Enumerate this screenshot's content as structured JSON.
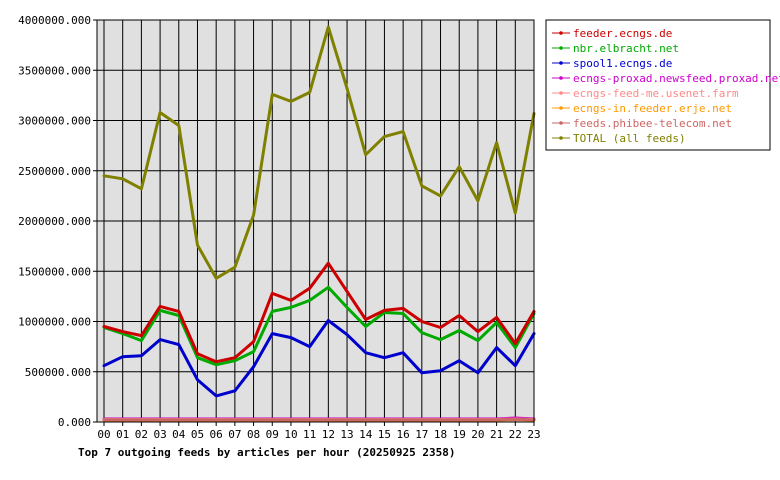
{
  "chart_data": {
    "type": "line",
    "title": "Top 7 outgoing feeds by articles per hour (20250925 2358)",
    "xlabel": "",
    "ylabel": "",
    "categories": [
      "00",
      "01",
      "02",
      "03",
      "04",
      "05",
      "06",
      "07",
      "08",
      "09",
      "10",
      "11",
      "12",
      "13",
      "14",
      "15",
      "16",
      "17",
      "18",
      "19",
      "20",
      "21",
      "22",
      "23"
    ],
    "ylim": [
      0,
      4000000
    ],
    "y_ticks": [
      "0.000",
      "500000.000",
      "1000000.000",
      "1500000.000",
      "2000000.000",
      "2500000.000",
      "3000000.000",
      "3500000.000",
      "4000000.000"
    ],
    "grid": true,
    "legend_position": "right",
    "series": [
      {
        "name": "feeder.ecngs.de",
        "color": "#cc0000",
        "values": [
          950000,
          900000,
          860000,
          1150000,
          1100000,
          680000,
          600000,
          640000,
          800000,
          1280000,
          1210000,
          1330000,
          1580000,
          1300000,
          1020000,
          1110000,
          1130000,
          1000000,
          940000,
          1060000,
          900000,
          1040000,
          780000,
          1100000
        ]
      },
      {
        "name": "nbr.elbracht.net",
        "color": "#00aa00",
        "values": [
          940000,
          880000,
          810000,
          1110000,
          1060000,
          640000,
          570000,
          610000,
          700000,
          1100000,
          1140000,
          1210000,
          1340000,
          1140000,
          950000,
          1090000,
          1080000,
          890000,
          820000,
          910000,
          810000,
          990000,
          740000,
          1080000
        ]
      },
      {
        "name": "spool1.ecngs.de",
        "color": "#0000cc",
        "values": [
          560000,
          650000,
          660000,
          820000,
          770000,
          420000,
          260000,
          310000,
          550000,
          880000,
          840000,
          750000,
          1010000,
          870000,
          690000,
          640000,
          690000,
          490000,
          510000,
          610000,
          490000,
          740000,
          560000,
          880000
        ]
      },
      {
        "name": "ecngs-proxad.newsfeed.proxad.net",
        "color": "#cc00cc",
        "values": [
          30000,
          30000,
          30000,
          30000,
          30000,
          30000,
          30000,
          30000,
          30000,
          30000,
          30000,
          30000,
          30000,
          30000,
          30000,
          30000,
          30000,
          30000,
          30000,
          30000,
          30000,
          30000,
          40000,
          30000
        ]
      },
      {
        "name": "ecngs-feed-me.usenet.farm",
        "color": "#ff8888",
        "values": [
          25000,
          25000,
          25000,
          25000,
          25000,
          25000,
          25000,
          25000,
          25000,
          25000,
          25000,
          25000,
          25000,
          25000,
          25000,
          25000,
          25000,
          25000,
          25000,
          25000,
          25000,
          25000,
          30000,
          25000
        ]
      },
      {
        "name": "ecngs-in.feeder.erje.net",
        "color": "#ff9900",
        "values": [
          20000,
          20000,
          20000,
          20000,
          20000,
          20000,
          20000,
          20000,
          20000,
          20000,
          20000,
          20000,
          20000,
          20000,
          20000,
          20000,
          20000,
          20000,
          20000,
          20000,
          20000,
          20000,
          25000,
          20000
        ]
      },
      {
        "name": "feeds.phibee-telecom.net",
        "color": "#cc6666",
        "values": [
          22000,
          22000,
          22000,
          22000,
          22000,
          22000,
          22000,
          22000,
          22000,
          22000,
          22000,
          22000,
          22000,
          22000,
          22000,
          22000,
          22000,
          22000,
          22000,
          22000,
          22000,
          22000,
          28000,
          22000
        ]
      },
      {
        "name": "TOTAL (all feeds)",
        "color": "#808000",
        "values": [
          2450000,
          2420000,
          2320000,
          3080000,
          2950000,
          1760000,
          1430000,
          1540000,
          2060000,
          3260000,
          3190000,
          3280000,
          3930000,
          3320000,
          2660000,
          2840000,
          2890000,
          2350000,
          2250000,
          2540000,
          2200000,
          2780000,
          2080000,
          3070000
        ]
      }
    ]
  }
}
